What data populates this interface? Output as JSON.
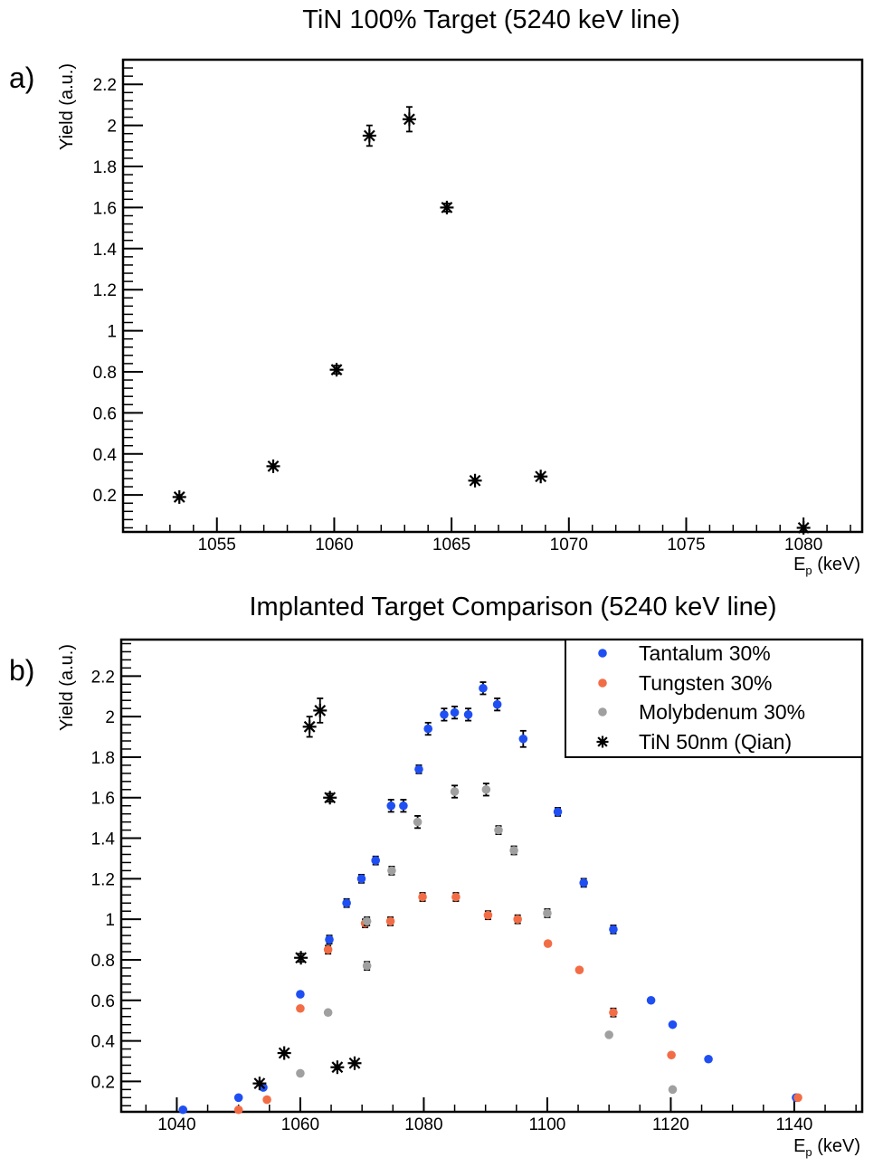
{
  "chart_data": [
    {
      "type": "scatter",
      "panel_label": "a)",
      "title": "TiN 100% Target (5240 keV line)",
      "xlabel_main": "E",
      "xlabel_sub": "p",
      "xlabel_unit": " (keV)",
      "ylabel": "Yield (a.u.)",
      "xlim": [
        1051,
        1082.5
      ],
      "ylim": [
        0.02,
        2.32
      ],
      "grid": false,
      "x_ticks": [
        1055,
        1060,
        1065,
        1070,
        1075,
        1080
      ],
      "x_tick_labels": [
        "1055",
        "1060",
        "1065",
        "1070",
        "1075",
        "1080"
      ],
      "y_ticks": [
        0.2,
        0.4,
        0.6,
        0.8,
        1,
        1.2,
        1.4,
        1.6,
        1.8,
        2,
        2.2
      ],
      "y_tick_labels": [
        "0.2",
        "0.4",
        "0.6",
        "0.8",
        "1",
        "1.2",
        "1.4",
        "1.6",
        "1.8",
        "2",
        "2.2"
      ],
      "series": [
        {
          "marker": "asterisk",
          "color": "#000000",
          "points": [
            {
              "x": 1053.4,
              "y": 0.19,
              "err": 0.01
            },
            {
              "x": 1057.4,
              "y": 0.34,
              "err": 0.01
            },
            {
              "x": 1060.1,
              "y": 0.81,
              "err": 0.02
            },
            {
              "x": 1061.5,
              "y": 1.95,
              "err": 0.05
            },
            {
              "x": 1063.2,
              "y": 2.03,
              "err": 0.06
            },
            {
              "x": 1064.8,
              "y": 1.6,
              "err": 0.02
            },
            {
              "x": 1066.0,
              "y": 0.27,
              "err": 0.01
            },
            {
              "x": 1068.8,
              "y": 0.29,
              "err": 0.01
            },
            {
              "x": 1080.0,
              "y": 0.04,
              "err": 0.01
            }
          ]
        }
      ]
    },
    {
      "type": "scatter",
      "panel_label": "b)",
      "title": "Implanted Target Comparison (5240 keV line)",
      "xlabel_main": "E",
      "xlabel_sub": "p",
      "xlabel_unit": " (keV)",
      "ylabel": "Yield (a.u.)",
      "xlim": [
        1031,
        1151
      ],
      "ylim": [
        0.05,
        2.38
      ],
      "grid": false,
      "legend_position": "top-right",
      "x_ticks": [
        1040,
        1060,
        1080,
        1100,
        1120,
        1140
      ],
      "x_tick_labels": [
        "1040",
        "1060",
        "1080",
        "1100",
        "1120",
        "1140"
      ],
      "y_ticks": [
        0.2,
        0.4,
        0.6,
        0.8,
        1,
        1.2,
        1.4,
        1.6,
        1.8,
        2,
        2.2
      ],
      "y_tick_labels": [
        "0.2",
        "0.4",
        "0.6",
        "0.8",
        "1",
        "1.2",
        "1.4",
        "1.6",
        "1.8",
        "2",
        "2.2"
      ],
      "series": [
        {
          "name": "Tantalum 30%",
          "marker": "dot",
          "color": "#1f4ff2",
          "points": [
            {
              "x": 1041,
              "y": 0.06,
              "err": 0
            },
            {
              "x": 1050,
              "y": 0.12,
              "err": 0
            },
            {
              "x": 1054,
              "y": 0.17,
              "err": 0
            },
            {
              "x": 1060,
              "y": 0.63,
              "err": 0
            },
            {
              "x": 1064.7,
              "y": 0.9,
              "err": 0.02
            },
            {
              "x": 1067.5,
              "y": 1.08,
              "err": 0.02
            },
            {
              "x": 1069.9,
              "y": 1.2,
              "err": 0.02
            },
            {
              "x": 1072.2,
              "y": 1.29,
              "err": 0.02
            },
            {
              "x": 1074.7,
              "y": 1.56,
              "err": 0.03
            },
            {
              "x": 1076.7,
              "y": 1.56,
              "err": 0.03
            },
            {
              "x": 1079.2,
              "y": 1.74,
              "err": 0.02
            },
            {
              "x": 1080.7,
              "y": 1.94,
              "err": 0.03
            },
            {
              "x": 1083.3,
              "y": 2.01,
              "err": 0.03
            },
            {
              "x": 1085.0,
              "y": 2.02,
              "err": 0.03
            },
            {
              "x": 1087.2,
              "y": 2.01,
              "err": 0.03
            },
            {
              "x": 1089.6,
              "y": 2.14,
              "err": 0.03
            },
            {
              "x": 1091.9,
              "y": 2.06,
              "err": 0.03
            },
            {
              "x": 1096.1,
              "y": 1.89,
              "err": 0.04
            },
            {
              "x": 1101.7,
              "y": 1.53,
              "err": 0.02
            },
            {
              "x": 1105.9,
              "y": 1.18,
              "err": 0.02
            },
            {
              "x": 1110.7,
              "y": 0.95,
              "err": 0.02
            },
            {
              "x": 1116.8,
              "y": 0.6,
              "err": 0.01
            },
            {
              "x": 1120.3,
              "y": 0.48,
              "err": 0
            },
            {
              "x": 1126.1,
              "y": 0.31,
              "err": 0
            },
            {
              "x": 1140.3,
              "y": 0.12,
              "err": 0
            }
          ]
        },
        {
          "name": "Tungsten 30%",
          "marker": "dot",
          "color": "#f26d45",
          "points": [
            {
              "x": 1050,
              "y": 0.06,
              "err": 0
            },
            {
              "x": 1054.6,
              "y": 0.11,
              "err": 0
            },
            {
              "x": 1060,
              "y": 0.56,
              "err": 0
            },
            {
              "x": 1064.5,
              "y": 0.85,
              "err": 0.02
            },
            {
              "x": 1070.5,
              "y": 0.98,
              "err": 0.02
            },
            {
              "x": 1074.6,
              "y": 0.99,
              "err": 0.02
            },
            {
              "x": 1079.8,
              "y": 1.11,
              "err": 0.02
            },
            {
              "x": 1085.2,
              "y": 1.11,
              "err": 0.02
            },
            {
              "x": 1090.4,
              "y": 1.02,
              "err": 0.02
            },
            {
              "x": 1095.2,
              "y": 1.0,
              "err": 0.02
            },
            {
              "x": 1100.1,
              "y": 0.88,
              "err": 0
            },
            {
              "x": 1105.2,
              "y": 0.75,
              "err": 0.01
            },
            {
              "x": 1110.7,
              "y": 0.54,
              "err": 0.02
            },
            {
              "x": 1120.1,
              "y": 0.33,
              "err": 0
            },
            {
              "x": 1140.6,
              "y": 0.12,
              "err": 0
            }
          ]
        },
        {
          "name": "Molybdenum 30%",
          "marker": "dot",
          "color": "#a0a0a0",
          "points": [
            {
              "x": 1060,
              "y": 0.24,
              "err": 0
            },
            {
              "x": 1064.5,
              "y": 0.54,
              "err": 0
            },
            {
              "x": 1070.8,
              "y": 0.77,
              "err": 0.02
            },
            {
              "x": 1070.8,
              "y": 0.99,
              "err": 0.02
            },
            {
              "x": 1074.8,
              "y": 1.24,
              "err": 0.02
            },
            {
              "x": 1079.0,
              "y": 1.48,
              "err": 0.03
            },
            {
              "x": 1085.0,
              "y": 1.63,
              "err": 0.03
            },
            {
              "x": 1090.1,
              "y": 1.64,
              "err": 0.03
            },
            {
              "x": 1092.1,
              "y": 1.44,
              "err": 0.02
            },
            {
              "x": 1094.6,
              "y": 1.34,
              "err": 0.02
            },
            {
              "x": 1100.0,
              "y": 1.03,
              "err": 0.02
            },
            {
              "x": 1110.0,
              "y": 0.43,
              "err": 0
            },
            {
              "x": 1120.3,
              "y": 0.16,
              "err": 0
            }
          ]
        },
        {
          "name": "TiN 50nm (Qian)",
          "marker": "asterisk",
          "color": "#000000",
          "points": [
            {
              "x": 1053.4,
              "y": 0.19,
              "err": 0.01
            },
            {
              "x": 1057.4,
              "y": 0.34,
              "err": 0.01
            },
            {
              "x": 1060.1,
              "y": 0.81,
              "err": 0.02
            },
            {
              "x": 1061.5,
              "y": 1.95,
              "err": 0.05
            },
            {
              "x": 1063.2,
              "y": 2.03,
              "err": 0.06
            },
            {
              "x": 1064.8,
              "y": 1.6,
              "err": 0.02
            },
            {
              "x": 1066.0,
              "y": 0.27,
              "err": 0.01
            },
            {
              "x": 1068.8,
              "y": 0.29,
              "err": 0.01
            }
          ]
        }
      ]
    }
  ]
}
